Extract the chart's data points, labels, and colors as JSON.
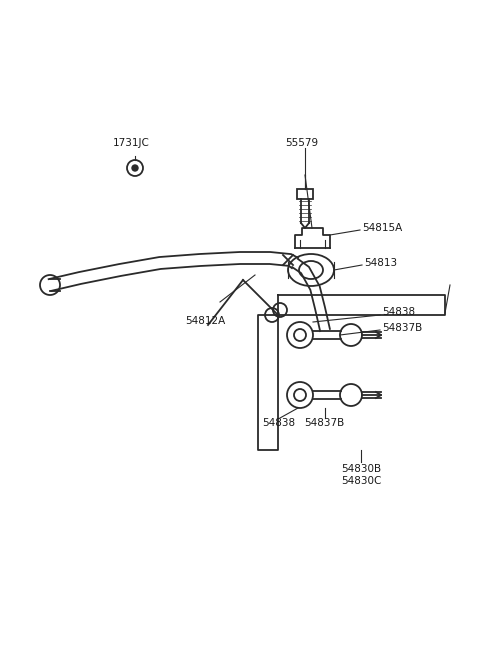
{
  "bg_color": "#ffffff",
  "line_color": "#2a2a2a",
  "text_color": "#1a1a1a",
  "figsize": [
    4.8,
    6.55
  ],
  "dpi": 100,
  "lw_main": 1.3,
  "lw_thin": 0.8,
  "fs": 7.5,
  "label_1731JC": "1731JC",
  "label_55579": "55579",
  "label_54815A": "54815A",
  "label_54813": "54813",
  "label_54812A": "54812A",
  "label_54838": "54838",
  "label_54837B": "54837B",
  "label_54830B": "54830B",
  "label_54830C": "54830C"
}
